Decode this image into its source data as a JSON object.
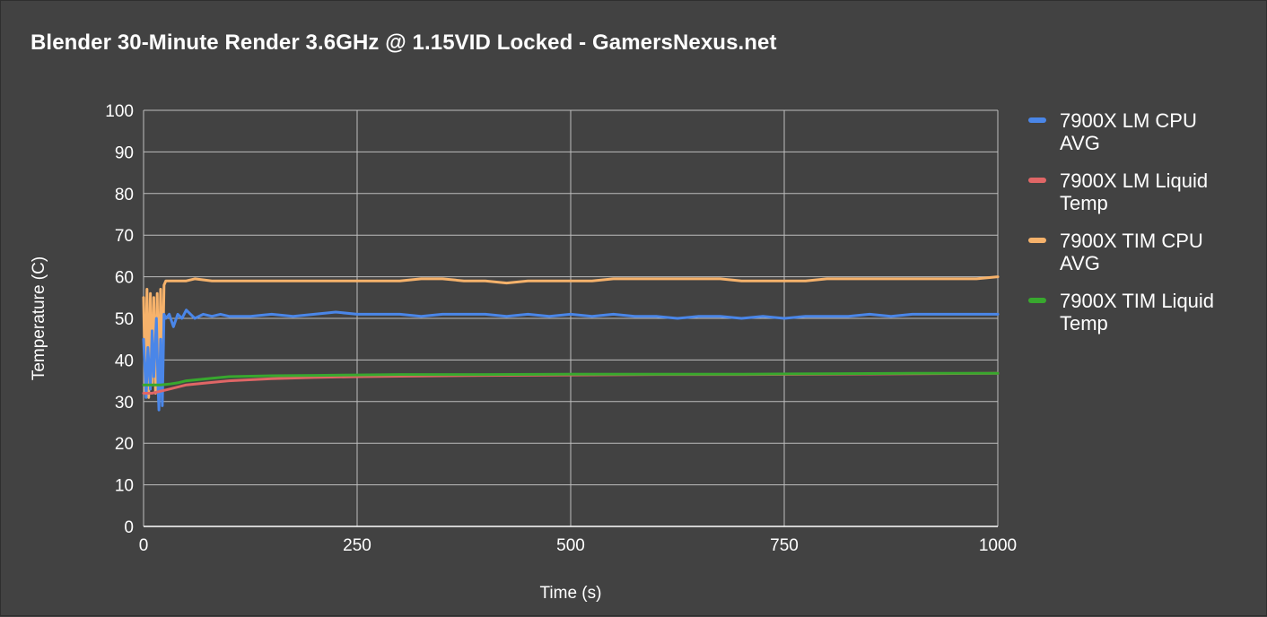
{
  "chart_data": {
    "type": "line",
    "title": "Blender 30-Minute Render 3.6GHz @ 1.15VID Locked - GamersNexus.net",
    "xlabel": "Time (s)",
    "ylabel": "Temperature (C)",
    "xlim": [
      0,
      1000
    ],
    "ylim": [
      0,
      100
    ],
    "x_ticks": [
      0,
      250,
      500,
      750,
      1000
    ],
    "y_ticks": [
      0,
      10,
      20,
      30,
      40,
      50,
      60,
      70,
      80,
      90,
      100
    ],
    "grid": true,
    "legend_position": "right",
    "series": [
      {
        "name": "7900X LM CPU AVG",
        "legend_lines": [
          "7900X LM CPU",
          "AVG"
        ],
        "color": "#4a86e8",
        "points": [
          [
            0,
            45
          ],
          [
            3,
            31
          ],
          [
            5,
            43
          ],
          [
            8,
            33
          ],
          [
            10,
            47
          ],
          [
            12,
            36
          ],
          [
            15,
            50
          ],
          [
            17,
            33
          ],
          [
            18,
            28
          ],
          [
            20,
            45
          ],
          [
            22,
            29
          ],
          [
            24,
            51
          ],
          [
            26,
            50
          ],
          [
            30,
            51
          ],
          [
            35,
            48
          ],
          [
            40,
            51
          ],
          [
            45,
            50
          ],
          [
            50,
            52
          ],
          [
            55,
            51
          ],
          [
            60,
            50
          ],
          [
            70,
            51
          ],
          [
            80,
            50.5
          ],
          [
            90,
            51
          ],
          [
            100,
            50.5
          ],
          [
            125,
            50.5
          ],
          [
            150,
            51
          ],
          [
            175,
            50.5
          ],
          [
            200,
            51
          ],
          [
            225,
            51.5
          ],
          [
            250,
            51
          ],
          [
            275,
            51
          ],
          [
            300,
            51
          ],
          [
            325,
            50.5
          ],
          [
            350,
            51
          ],
          [
            375,
            51
          ],
          [
            400,
            51
          ],
          [
            425,
            50.5
          ],
          [
            450,
            51
          ],
          [
            475,
            50.5
          ],
          [
            500,
            51
          ],
          [
            525,
            50.5
          ],
          [
            550,
            51
          ],
          [
            575,
            50.5
          ],
          [
            600,
            50.5
          ],
          [
            625,
            50
          ],
          [
            650,
            50.5
          ],
          [
            675,
            50.5
          ],
          [
            700,
            50
          ],
          [
            725,
            50.5
          ],
          [
            750,
            50
          ],
          [
            775,
            50.5
          ],
          [
            800,
            50.5
          ],
          [
            825,
            50.5
          ],
          [
            850,
            51
          ],
          [
            875,
            50.5
          ],
          [
            900,
            51
          ],
          [
            925,
            51
          ],
          [
            950,
            51
          ],
          [
            975,
            51
          ],
          [
            1000,
            51
          ]
        ]
      },
      {
        "name": "7900X LM Liquid Temp",
        "legend_lines": [
          "7900X LM Liquid",
          "Temp"
        ],
        "color": "#e06666",
        "points": [
          [
            0,
            32
          ],
          [
            10,
            32
          ],
          [
            20,
            32.5
          ],
          [
            30,
            33
          ],
          [
            40,
            33.5
          ],
          [
            50,
            34
          ],
          [
            75,
            34.5
          ],
          [
            100,
            35
          ],
          [
            150,
            35.5
          ],
          [
            200,
            35.8
          ],
          [
            250,
            36
          ],
          [
            300,
            36.1
          ],
          [
            400,
            36.3
          ],
          [
            500,
            36.4
          ],
          [
            600,
            36.5
          ],
          [
            700,
            36.5
          ],
          [
            800,
            36.6
          ],
          [
            900,
            36.7
          ],
          [
            1000,
            36.8
          ]
        ]
      },
      {
        "name": "7900X TIM CPU AVG",
        "legend_lines": [
          "7900X TIM CPU",
          "AVG"
        ],
        "color": "#f6b26b",
        "points": [
          [
            0,
            55
          ],
          [
            2,
            32
          ],
          [
            4,
            57
          ],
          [
            6,
            31
          ],
          [
            8,
            56
          ],
          [
            10,
            34
          ],
          [
            12,
            55
          ],
          [
            14,
            32
          ],
          [
            16,
            56
          ],
          [
            18,
            30
          ],
          [
            20,
            57
          ],
          [
            22,
            35
          ],
          [
            24,
            58
          ],
          [
            26,
            59
          ],
          [
            30,
            59
          ],
          [
            40,
            59
          ],
          [
            50,
            59
          ],
          [
            60,
            59.5
          ],
          [
            80,
            59
          ],
          [
            100,
            59
          ],
          [
            125,
            59
          ],
          [
            150,
            59
          ],
          [
            175,
            59
          ],
          [
            200,
            59
          ],
          [
            225,
            59
          ],
          [
            250,
            59
          ],
          [
            275,
            59
          ],
          [
            300,
            59
          ],
          [
            325,
            59.5
          ],
          [
            350,
            59.5
          ],
          [
            375,
            59
          ],
          [
            400,
            59
          ],
          [
            425,
            58.5
          ],
          [
            450,
            59
          ],
          [
            475,
            59
          ],
          [
            500,
            59
          ],
          [
            525,
            59
          ],
          [
            550,
            59.5
          ],
          [
            575,
            59.5
          ],
          [
            600,
            59.5
          ],
          [
            625,
            59.5
          ],
          [
            650,
            59.5
          ],
          [
            675,
            59.5
          ],
          [
            700,
            59
          ],
          [
            725,
            59
          ],
          [
            750,
            59
          ],
          [
            775,
            59
          ],
          [
            800,
            59.5
          ],
          [
            825,
            59.5
          ],
          [
            850,
            59.5
          ],
          [
            875,
            59.5
          ],
          [
            900,
            59.5
          ],
          [
            925,
            59.5
          ],
          [
            950,
            59.5
          ],
          [
            975,
            59.5
          ],
          [
            1000,
            60
          ]
        ]
      },
      {
        "name": "7900X TIM Liquid Temp",
        "legend_lines": [
          "7900X TIM Liquid",
          "Temp"
        ],
        "color": "#38a82e",
        "points": [
          [
            0,
            34
          ],
          [
            10,
            34
          ],
          [
            20,
            34
          ],
          [
            30,
            34.2
          ],
          [
            40,
            34.5
          ],
          [
            50,
            35
          ],
          [
            75,
            35.5
          ],
          [
            100,
            36
          ],
          [
            150,
            36.2
          ],
          [
            200,
            36.3
          ],
          [
            250,
            36.4
          ],
          [
            300,
            36.5
          ],
          [
            400,
            36.5
          ],
          [
            500,
            36.6
          ],
          [
            600,
            36.6
          ],
          [
            700,
            36.6
          ],
          [
            800,
            36.7
          ],
          [
            900,
            36.8
          ],
          [
            1000,
            36.8
          ]
        ]
      }
    ]
  }
}
